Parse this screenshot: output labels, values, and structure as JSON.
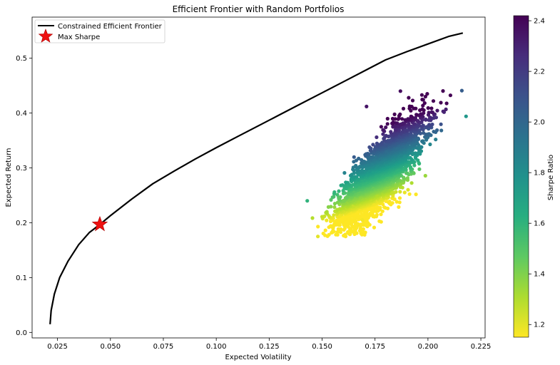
{
  "chart_data": {
    "type": "scatter",
    "title": "Efficient Frontier with Random Portfolios",
    "xlabel": "Expected Volatility",
    "ylabel": "Expected Return",
    "xlim": [
      0.013,
      0.227
    ],
    "ylim": [
      -0.01,
      0.575
    ],
    "x_ticks": [
      0.025,
      0.05,
      0.075,
      0.1,
      0.125,
      0.15,
      0.175,
      0.2,
      0.225
    ],
    "x_tick_labels": [
      "0.025",
      "0.050",
      "0.075",
      "0.100",
      "0.125",
      "0.150",
      "0.175",
      "0.200",
      "0.225"
    ],
    "y_ticks": [
      0.0,
      0.1,
      0.2,
      0.3,
      0.4,
      0.5
    ],
    "y_tick_labels": [
      "0.0",
      "0.1",
      "0.2",
      "0.3",
      "0.4",
      "0.5"
    ],
    "grid": false,
    "legend": {
      "placement": "top-left",
      "entries": [
        {
          "label": "Constrained Efficient Frontier",
          "kind": "line",
          "color": "#000000"
        },
        {
          "label": "Max Sharpe",
          "kind": "star",
          "color": "#ee1111"
        }
      ]
    },
    "frontier": {
      "name": "Constrained Efficient Frontier",
      "color": "#000000",
      "x": [
        0.0215,
        0.022,
        0.0235,
        0.026,
        0.03,
        0.035,
        0.04,
        0.045,
        0.05,
        0.06,
        0.07,
        0.08,
        0.09,
        0.1,
        0.11,
        0.12,
        0.13,
        0.14,
        0.15,
        0.16,
        0.17,
        0.18,
        0.19,
        0.2,
        0.21,
        0.2165
      ],
      "y": [
        0.015,
        0.04,
        0.07,
        0.1,
        0.13,
        0.16,
        0.182,
        0.197,
        0.213,
        0.243,
        0.271,
        0.294,
        0.316,
        0.337,
        0.357,
        0.377,
        0.397,
        0.417,
        0.437,
        0.457,
        0.477,
        0.497,
        0.512,
        0.526,
        0.54,
        0.546
      ]
    },
    "max_sharpe": {
      "label": "Max Sharpe",
      "x": 0.045,
      "y": 0.197,
      "color": "#ee1111"
    },
    "random_portfolios": {
      "count": 5000,
      "volatility_range": [
        0.143,
        0.218
      ],
      "return_range": [
        0.175,
        0.442
      ],
      "center": {
        "x": 0.177,
        "y": 0.285
      },
      "color_by": "Sharpe Ratio",
      "sharpe_range": [
        1.15,
        2.42
      ],
      "sample_points": [
        {
          "x": 0.171,
          "y": 0.412,
          "sharpe": 2.35
        },
        {
          "x": 0.187,
          "y": 0.44,
          "sharpe": 2.38
        },
        {
          "x": 0.216,
          "y": 0.441,
          "sharpe": 2.05
        },
        {
          "x": 0.218,
          "y": 0.394,
          "sharpe": 1.75
        },
        {
          "x": 0.143,
          "y": 0.24,
          "sharpe": 1.6
        },
        {
          "x": 0.148,
          "y": 0.175,
          "sharpe": 1.2
        },
        {
          "x": 0.169,
          "y": 0.205,
          "sharpe": 1.17
        }
      ]
    },
    "colorbar": {
      "label": "Sharpe Ratio",
      "colormap": "viridis",
      "min": 1.15,
      "max": 2.42,
      "ticks": [
        1.2,
        1.4,
        1.6,
        1.8,
        2.0,
        2.2,
        2.4
      ],
      "tick_labels": [
        "1.2",
        "1.4",
        "1.6",
        "1.8",
        "2.0",
        "2.2",
        "2.4"
      ]
    }
  }
}
